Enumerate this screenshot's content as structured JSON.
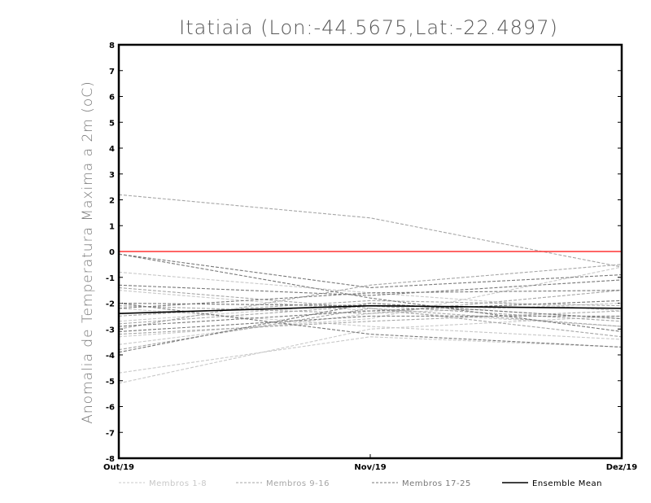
{
  "chart_data": {
    "type": "line",
    "title": "Itatiaia (Lon:-44.5675,Lat:-22.4897)",
    "ylabel": "Anomalia de Temperatura Maxima a 2m (oC)",
    "xlabel": "",
    "categories": [
      "Out/19",
      "Nov/19",
      "Dez/19"
    ],
    "ylim": [
      -8,
      8
    ],
    "yticks": [
      8,
      7,
      6,
      5,
      4,
      3,
      2,
      1,
      0,
      -1,
      -2,
      -3,
      -4,
      -5,
      -6,
      -7,
      -8
    ],
    "ytick_labels": [
      "8",
      "7",
      "6",
      "5",
      "4",
      "3",
      "2",
      "1",
      "0",
      "-1",
      "-2",
      "-3",
      "-4",
      "-5",
      "-6",
      "-7",
      "-8"
    ],
    "reference_line": {
      "value": 0,
      "color": "#ff3333"
    },
    "groups": [
      {
        "name": "Membros 1-8",
        "color": "#c8c8c8",
        "series": [
          [
            -0.8,
            -1.6,
            -2.3
          ],
          [
            -5.1,
            -3.0,
            -2.5
          ],
          [
            -4.7,
            -3.3,
            -3.7
          ],
          [
            -3.6,
            -2.4,
            -2.0
          ],
          [
            -2.7,
            -2.0,
            -2.6
          ],
          [
            -1.5,
            -2.3,
            -2.9
          ],
          [
            -3.3,
            -2.6,
            -0.6
          ],
          [
            -2.2,
            -2.9,
            -3.4
          ]
        ]
      },
      {
        "name": "Membros 9-16",
        "color": "#a6a6a6",
        "series": [
          [
            2.2,
            1.3,
            -0.6
          ],
          [
            -3.0,
            -1.3,
            -0.5
          ],
          [
            -2.8,
            -2.1,
            -2.7
          ],
          [
            -2.1,
            -2.4,
            -1.5
          ],
          [
            -3.2,
            -2.7,
            -2.3
          ],
          [
            -1.4,
            -2.2,
            -3.3
          ],
          [
            -2.5,
            -1.9,
            -2.1
          ],
          [
            -3.8,
            -2.2,
            -2.9
          ]
        ]
      },
      {
        "name": "Membros 17-25",
        "color": "#787878",
        "series": [
          [
            -0.1,
            -1.8,
            -3.1
          ],
          [
            -0.1,
            -1.4,
            -0.9
          ],
          [
            -3.9,
            -2.0,
            -2.6
          ],
          [
            -2.0,
            -3.2,
            -3.7
          ],
          [
            -2.2,
            -1.6,
            -1.5
          ],
          [
            -1.3,
            -1.7,
            -1.1
          ],
          [
            -2.9,
            -2.3,
            -1.9
          ],
          [
            -3.1,
            -2.5,
            -2.5
          ],
          [
            -2.0,
            -2.1,
            -2.2
          ]
        ]
      },
      {
        "name": "Ensemble Mean",
        "color": "#000000",
        "solid": true,
        "series": [
          [
            -2.4,
            -2.1,
            -2.2
          ]
        ]
      }
    ]
  }
}
